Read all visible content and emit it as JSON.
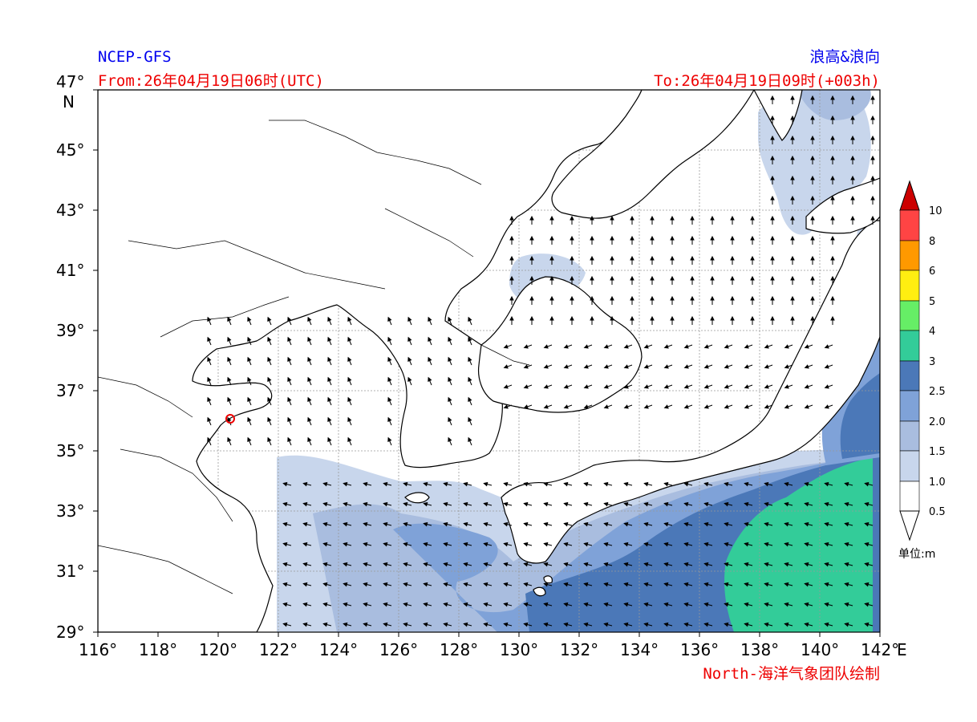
{
  "header": {
    "source": "NCEP-GFS",
    "product": "浪高&浪向",
    "from": "From:26年04月19日06时(UTC)",
    "to": "To:26年04月19日09时(+003h)"
  },
  "footer": {
    "credit": "North-海洋气象团队绘制"
  },
  "axes": {
    "lon_ticks": [
      "116°",
      "118°",
      "120°",
      "122°",
      "124°",
      "126°",
      "128°",
      "130°",
      "132°",
      "134°",
      "136°",
      "138°",
      "140°",
      "142°"
    ],
    "lat_ticks": [
      "47°",
      "45°",
      "43°",
      "41°",
      "39°",
      "37°",
      "35°",
      "33°",
      "31°",
      "29°"
    ],
    "lon_unit": "E",
    "lat_unit": "N",
    "lon_range": [
      116,
      142
    ],
    "lat_range": [
      29,
      47
    ],
    "grid": true
  },
  "colorbar": {
    "levels": [
      "0.5",
      "1.0",
      "1.5",
      "2.0",
      "2.5",
      "3",
      "4",
      "5",
      "6",
      "8",
      "10"
    ],
    "colors": [
      "#ffffff",
      "#c8d6ec",
      "#a9bddf",
      "#7fa2d8",
      "#4b78b8",
      "#33cc99",
      "#66ee66",
      "#ffee11",
      "#ff9900",
      "#ff4444",
      "#cc0000"
    ],
    "unit_label": "单位:m"
  },
  "map_features": {
    "land_color": "#ffffff",
    "marker": "red circle near Qingdao"
  }
}
